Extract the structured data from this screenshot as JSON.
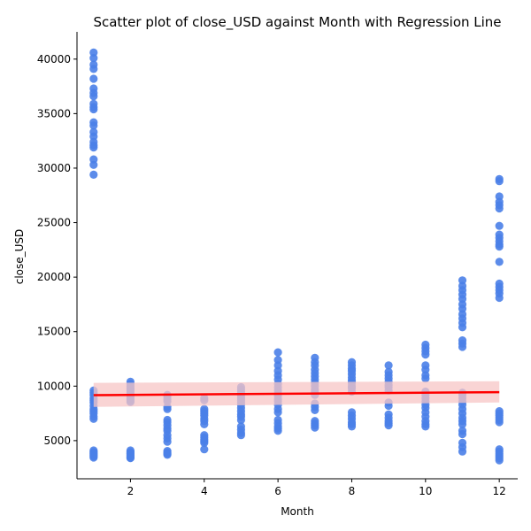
{
  "chart_data": {
    "type": "scatter",
    "title": "Scatter plot of close_USD against Month with Regression Line",
    "xlabel": "Month",
    "ylabel": "close_USD",
    "xlim": [
      0.55,
      12.5
    ],
    "ylim": [
      1500,
      42500
    ],
    "x_ticks": [
      2,
      4,
      6,
      8,
      10,
      12
    ],
    "y_ticks": [
      5000,
      10000,
      15000,
      20000,
      25000,
      30000,
      35000,
      40000
    ],
    "grid": false,
    "legend": "none",
    "colors": {
      "points": "#4a7fe8",
      "regression_line": "#ff0000",
      "confidence_band": "#f7c5c5"
    },
    "regression": {
      "x": [
        1,
        12
      ],
      "y": [
        9170,
        9450
      ],
      "ci_lower": [
        8100,
        8500
      ],
      "ci_upper": [
        10300,
        10450
      ]
    },
    "points_by_month": [
      {
        "month": 1,
        "close_usd": [
          40600,
          40100,
          39500,
          39100,
          38200,
          37300,
          36900,
          36600,
          35900,
          35600,
          35400,
          34200,
          33900,
          33300,
          32900,
          32400,
          32100,
          31900,
          30800,
          30300,
          29400,
          9600,
          9400,
          9200,
          8900,
          8700,
          8500,
          8200,
          7900,
          7700,
          7500,
          7200,
          7000,
          4100,
          3950,
          3850,
          3750,
          3650,
          3550,
          3450
        ]
      },
      {
        "month": 2,
        "close_usd": [
          10400,
          10200,
          10000,
          9850,
          9700,
          9550,
          9400,
          9200,
          9000,
          8800,
          8650,
          8550,
          4100,
          3950,
          3850,
          3750,
          3650,
          3550,
          3450,
          3400
        ]
      },
      {
        "month": 3,
        "close_usd": [
          9200,
          9050,
          8800,
          8600,
          8100,
          7900,
          6900,
          6700,
          6400,
          6100,
          5900,
          5500,
          5200,
          4900,
          4050,
          3900,
          3800,
          3700
        ]
      },
      {
        "month": 4,
        "close_usd": [
          8900,
          8700,
          7900,
          7700,
          7500,
          7300,
          7000,
          6800,
          6500,
          5500,
          5300,
          5100,
          4950,
          4800,
          4200
        ]
      },
      {
        "month": 5,
        "close_usd": [
          9900,
          9700,
          9500,
          9300,
          9100,
          8900,
          8700,
          8500,
          8300,
          8000,
          7700,
          7400,
          7200,
          6900,
          6300,
          6000,
          5700,
          5500
        ]
      },
      {
        "month": 6,
        "close_usd": [
          13100,
          12400,
          11900,
          11400,
          11000,
          10600,
          10200,
          9900,
          9600,
          9300,
          9100,
          8800,
          8600,
          8300,
          7900,
          7600,
          6900,
          6600,
          6300,
          6100,
          5900
        ]
      },
      {
        "month": 7,
        "close_usd": [
          12600,
          12200,
          11900,
          11500,
          11200,
          10900,
          10600,
          10300,
          10000,
          9700,
          9500,
          9200,
          8400,
          8100,
          7800,
          6800,
          6600,
          6400,
          6200
        ]
      },
      {
        "month": 8,
        "close_usd": [
          12200,
          11900,
          11600,
          11400,
          11100,
          10800,
          10500,
          10300,
          10000,
          9800,
          9500,
          7600,
          7300,
          7000,
          6700,
          6500,
          6300
        ]
      },
      {
        "month": 9,
        "close_usd": [
          11900,
          11300,
          11000,
          10700,
          10400,
          10100,
          9900,
          9600,
          8500,
          8200,
          7400,
          7100,
          6800,
          6600,
          6400
        ]
      },
      {
        "month": 10,
        "close_usd": [
          13800,
          13500,
          13200,
          12900,
          11900,
          11500,
          11000,
          10700,
          9500,
          9200,
          8900,
          8600,
          8300,
          8000,
          7600,
          7200,
          6800,
          6500,
          6300
        ]
      },
      {
        "month": 11,
        "close_usd": [
          19700,
          19200,
          18800,
          18400,
          18000,
          17500,
          17100,
          16600,
          16200,
          15800,
          15400,
          14200,
          13900,
          13600,
          9400,
          9200,
          8900,
          8600,
          8300,
          7900,
          7500,
          7100,
          6800,
          6500,
          5900,
          5600,
          4800,
          4400,
          4000
        ]
      },
      {
        "month": 12,
        "close_usd": [
          29000,
          28800,
          27400,
          26900,
          26600,
          26300,
          24700,
          23900,
          23600,
          23300,
          23000,
          22800,
          21400,
          19400,
          19100,
          18800,
          18500,
          18100,
          7700,
          7500,
          7300,
          7100,
          6900,
          6700,
          4200,
          4000,
          3800,
          3600,
          3400,
          3200
        ]
      }
    ]
  }
}
